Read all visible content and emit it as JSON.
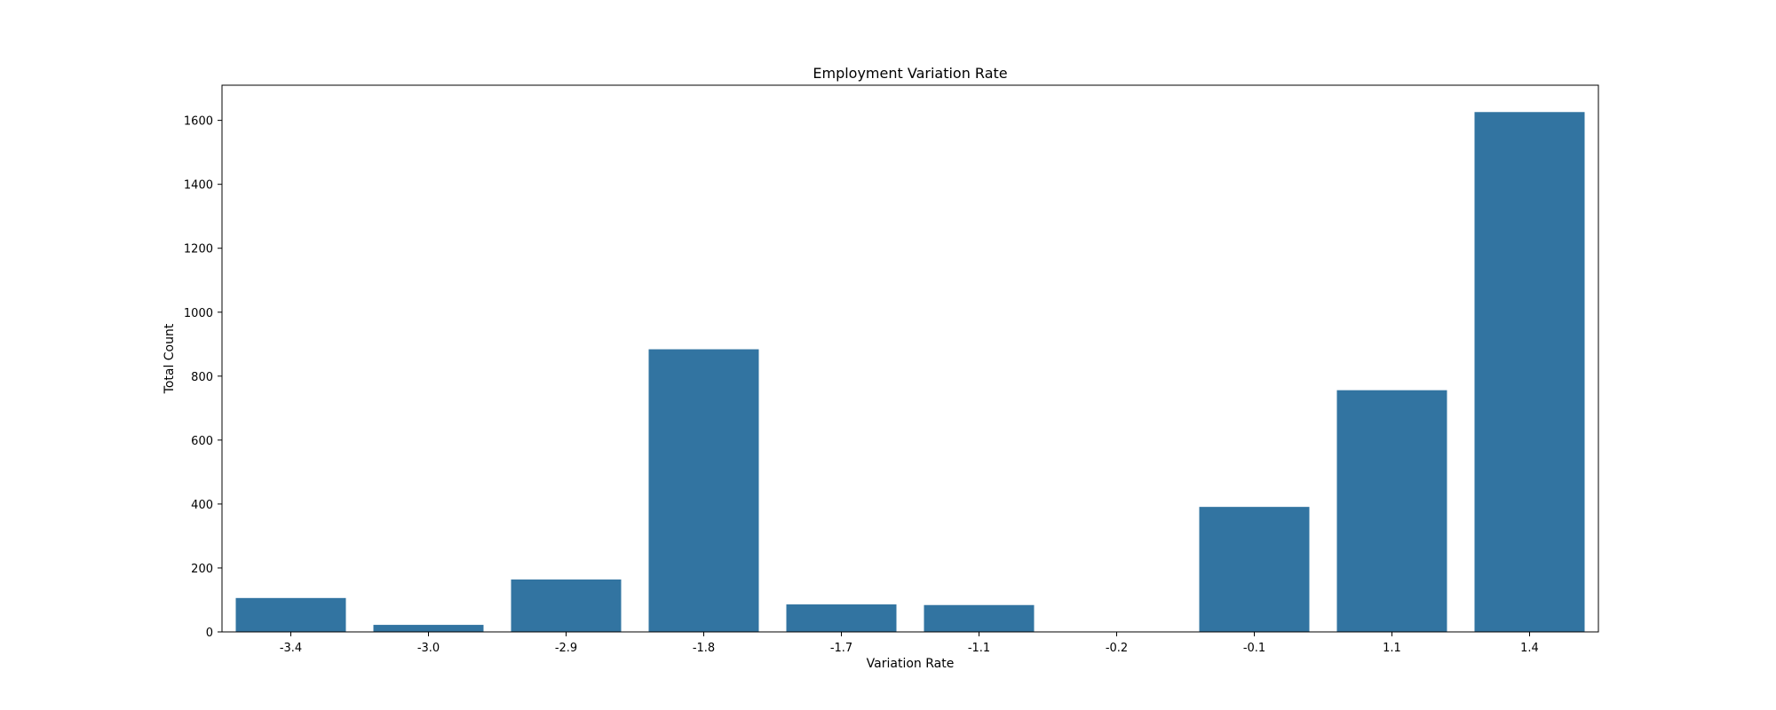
{
  "chart_data": {
    "type": "bar",
    "title": "Employment Variation Rate",
    "xlabel": "Variation Rate",
    "ylabel": "Total Count",
    "categories": [
      "-3.4",
      "-3.0",
      "-2.9",
      "-1.8",
      "-1.7",
      "-1.1",
      "-0.2",
      "-0.1",
      "1.1",
      "1.4"
    ],
    "values": [
      106,
      22,
      164,
      884,
      86,
      84,
      1,
      391,
      756,
      1626
    ],
    "ylim": [
      0,
      1710
    ],
    "yticks": [
      0,
      200,
      400,
      600,
      800,
      1000,
      1200,
      1400,
      1600
    ],
    "grid": false,
    "bar_color": "#3274a1"
  }
}
